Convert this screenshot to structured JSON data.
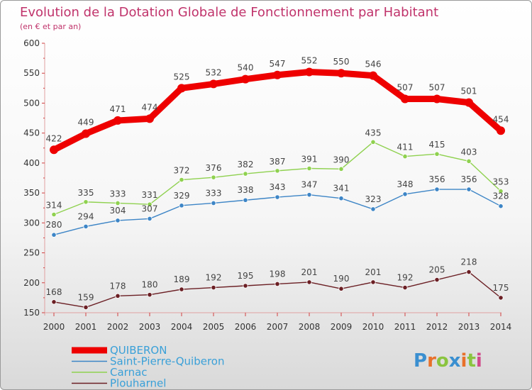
{
  "chart_data": {
    "type": "line",
    "title": "Evolution de la Dotation Globale de Fonctionnement par Habitant",
    "subtitle": "(en € et par an)",
    "x": [
      "2000",
      "2001",
      "2002",
      "2003",
      "2004",
      "2005",
      "2006",
      "2007",
      "2008",
      "2009",
      "2010",
      "2011",
      "2012",
      "2013",
      "2014"
    ],
    "ylim": [
      150,
      600
    ],
    "yticks": [
      150,
      200,
      250,
      300,
      350,
      400,
      450,
      500,
      550,
      600
    ],
    "grid": false,
    "legend_position": "bottom-left",
    "series": [
      {
        "name": "QUIBERON",
        "color": "#ee0000",
        "values": [
          422,
          449,
          471,
          474,
          525,
          532,
          540,
          547,
          552,
          550,
          546,
          507,
          507,
          501,
          454
        ]
      },
      {
        "name": "Saint-Pierre-Quiberon",
        "color": "#3d85c6",
        "values": [
          280,
          294,
          304,
          307,
          329,
          333,
          338,
          343,
          347,
          341,
          323,
          348,
          356,
          356,
          328
        ]
      },
      {
        "name": "Carnac",
        "color": "#8fd14f",
        "values": [
          314,
          335,
          333,
          331,
          372,
          376,
          382,
          387,
          391,
          390,
          435,
          411,
          415,
          403,
          353
        ]
      },
      {
        "name": "Plouharnel",
        "color": "#6b1f24",
        "values": [
          168,
          159,
          178,
          180,
          189,
          192,
          195,
          198,
          201,
          190,
          201,
          192,
          205,
          218,
          175
        ]
      }
    ]
  },
  "brand": {
    "logo_text": "Proxiti"
  }
}
